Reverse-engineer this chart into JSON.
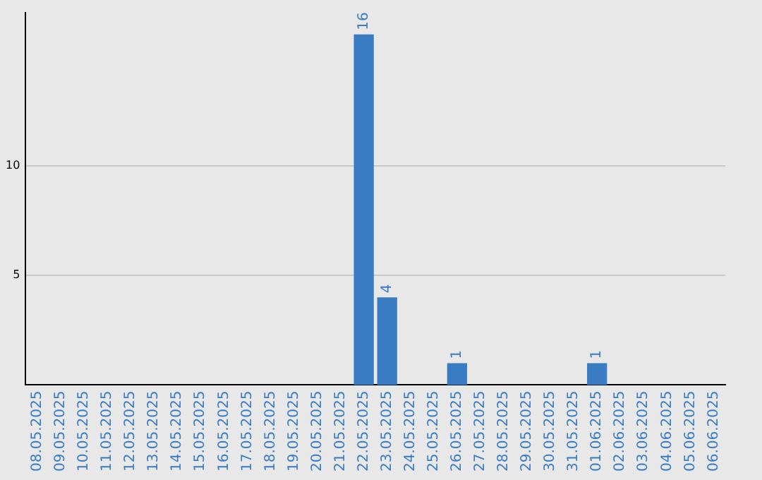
{
  "chart_data": {
    "type": "bar",
    "categories": [
      "08.05.2025",
      "09.05.2025",
      "10.05.2025",
      "11.05.2025",
      "12.05.2025",
      "13.05.2025",
      "14.05.2025",
      "15.05.2025",
      "16.05.2025",
      "17.05.2025",
      "18.05.2025",
      "19.05.2025",
      "20.05.2025",
      "21.05.2025",
      "22.05.2025",
      "23.05.2025",
      "24.05.2025",
      "25.05.2025",
      "26.05.2025",
      "27.05.2025",
      "28.05.2025",
      "29.05.2025",
      "30.05.2025",
      "31.05.2025",
      "01.06.2025",
      "02.06.2025",
      "03.06.2025",
      "04.06.2025",
      "05.06.2025",
      "06.06.2025"
    ],
    "values": [
      0,
      0,
      0,
      0,
      0,
      0,
      0,
      0,
      0,
      0,
      0,
      0,
      0,
      0,
      16,
      4,
      0,
      0,
      1,
      0,
      0,
      0,
      0,
      0,
      1,
      0,
      0,
      0,
      0,
      0
    ],
    "value_labels": [
      null,
      null,
      null,
      null,
      null,
      null,
      null,
      null,
      null,
      null,
      null,
      null,
      null,
      null,
      "16",
      "4",
      null,
      null,
      "1",
      null,
      null,
      null,
      null,
      null,
      "1",
      null,
      null,
      null,
      null,
      null
    ],
    "color": "#3a7cc4",
    "ylim": [
      0,
      17
    ],
    "yticks": [
      5,
      10
    ],
    "grid": "y"
  }
}
